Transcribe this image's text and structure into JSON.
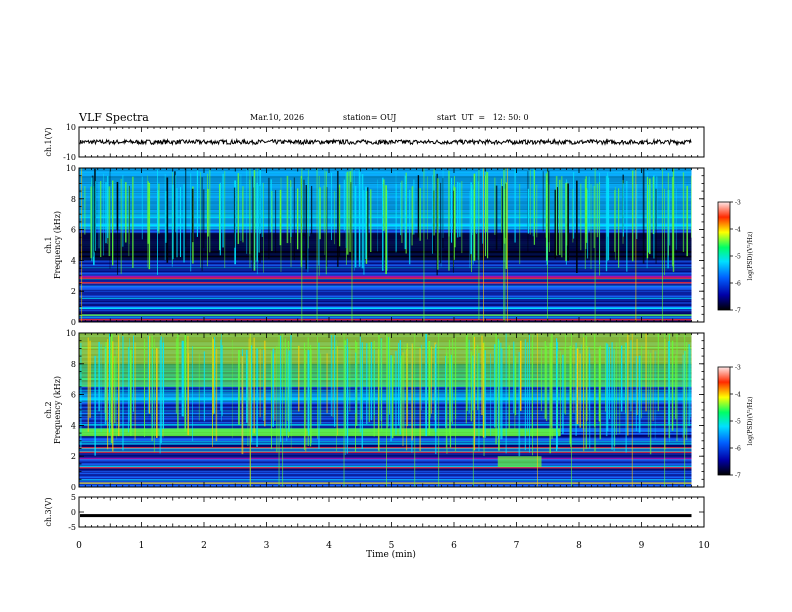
{
  "header": {
    "title": "VLF Spectra",
    "date": "Mar.10, 2026",
    "station": "station= OUJ",
    "start": "start  UT  =   12: 50: 0"
  },
  "colors": {
    "background": "#ffffff",
    "axis": "#000000",
    "noise_floor": "#0a1f9e",
    "noise_mid": "#1a66ff",
    "emission": "#00e8ff",
    "burst": "#66ff33",
    "intense": "#ffd000",
    "peak": "#ff2a2a"
  },
  "chart_data": [
    {
      "id": "ch1-waveform",
      "type": "line",
      "ylabel": "ch.1(V)",
      "ylim": [
        -10,
        10
      ],
      "ytick_labels": [
        "10",
        "-10"
      ],
      "xlim": [
        0,
        10
      ],
      "trace_mean": 0,
      "trace_amplitude": 1.5
    },
    {
      "id": "ch1-spectrogram",
      "type": "heatmap",
      "ylabel_channel": "ch.1",
      "ylabel": "Frequency  (kHz)",
      "ylim": [
        0,
        10
      ],
      "ytick_labels": [
        "0",
        "2",
        "4",
        "6",
        "8",
        "10"
      ],
      "xlim": [
        0,
        10
      ],
      "data_end_min": 9.8,
      "colorbar": {
        "label": "log(PSD)(V²/Hz)",
        "range": [
          -7,
          -3
        ],
        "tick_labels": [
          "-3",
          "-4",
          "-5",
          "-6",
          "-7"
        ]
      }
    },
    {
      "id": "ch2-spectrogram",
      "type": "heatmap",
      "ylabel_channel": "ch.2",
      "ylabel": "Frequency  (kHz)",
      "ylim": [
        0,
        10
      ],
      "ytick_labels": [
        "0",
        "2",
        "4",
        "6",
        "8",
        "10"
      ],
      "xlim": [
        0,
        10
      ],
      "data_end_min": 9.8,
      "colorbar": {
        "label": "log(PSD)(V²/Hz)",
        "range": [
          -7,
          -3
        ],
        "tick_labels": [
          "-3",
          "-4",
          "-5",
          "-6",
          "-7"
        ]
      }
    },
    {
      "id": "ch3-waveform",
      "type": "line",
      "ylabel": "ch.3(V)",
      "ylim": [
        -5,
        5
      ],
      "ytick_labels": [
        "5",
        "0",
        "-5"
      ],
      "xlim": [
        0,
        10
      ],
      "trace_mean": -1,
      "trace_amplitude": 0.3
    }
  ],
  "x_axis": {
    "label": "Time  (min)",
    "tick_labels": [
      "0",
      "1",
      "2",
      "3",
      "4",
      "5",
      "6",
      "7",
      "8",
      "9",
      "10"
    ]
  }
}
